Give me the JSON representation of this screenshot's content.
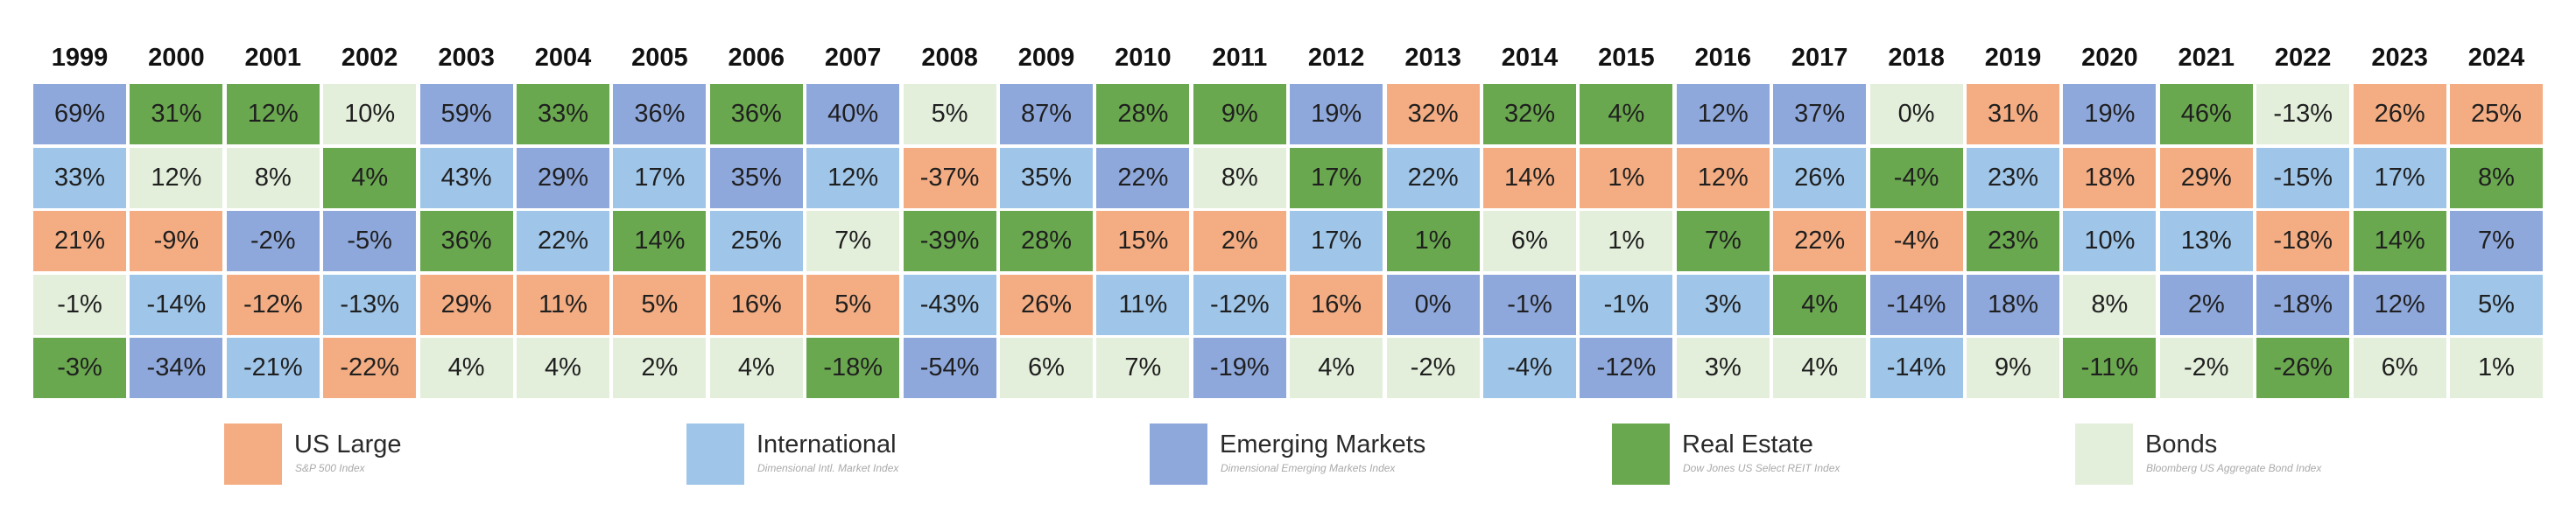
{
  "chart_data": {
    "type": "table",
    "years": [
      "1999",
      "2000",
      "2001",
      "2002",
      "2003",
      "2004",
      "2005",
      "2006",
      "2007",
      "2008",
      "2009",
      "2010",
      "2011",
      "2012",
      "2013",
      "2014",
      "2015",
      "2016",
      "2017",
      "2018",
      "2019",
      "2020",
      "2021",
      "2022",
      "2023",
      "2024"
    ],
    "categories": {
      "us_large": {
        "name": "US Large",
        "index": "S&P 500 Index",
        "color": "#f4ad83"
      },
      "international": {
        "name": "International",
        "index": "Dimensional Intl. Market Index",
        "color": "#9fc5e8"
      },
      "emerging": {
        "name": "Emerging Markets",
        "index": "Dimensional Emerging Markets Index",
        "color": "#8fa8dc"
      },
      "real_estate": {
        "name": "Real Estate",
        "index": "Dow Jones US Select REIT Index",
        "color": "#6aa84f"
      },
      "bonds": {
        "name": "Bonds",
        "index": "Bloomberg US Aggregate Bond Index",
        "color": "#e3efdb"
      }
    },
    "columns": [
      [
        [
          "69%",
          "emerging"
        ],
        [
          "33%",
          "international"
        ],
        [
          "21%",
          "us_large"
        ],
        [
          "-1%",
          "bonds"
        ],
        [
          "-3%",
          "real_estate"
        ]
      ],
      [
        [
          "31%",
          "real_estate"
        ],
        [
          "12%",
          "bonds"
        ],
        [
          "-9%",
          "us_large"
        ],
        [
          "-14%",
          "international"
        ],
        [
          "-34%",
          "emerging"
        ]
      ],
      [
        [
          "12%",
          "real_estate"
        ],
        [
          "8%",
          "bonds"
        ],
        [
          "-2%",
          "emerging"
        ],
        [
          "-12%",
          "us_large"
        ],
        [
          "-21%",
          "international"
        ]
      ],
      [
        [
          "10%",
          "bonds"
        ],
        [
          "4%",
          "real_estate"
        ],
        [
          "-5%",
          "emerging"
        ],
        [
          "-13%",
          "international"
        ],
        [
          "-22%",
          "us_large"
        ]
      ],
      [
        [
          "59%",
          "emerging"
        ],
        [
          "43%",
          "international"
        ],
        [
          "36%",
          "real_estate"
        ],
        [
          "29%",
          "us_large"
        ],
        [
          "4%",
          "bonds"
        ]
      ],
      [
        [
          "33%",
          "real_estate"
        ],
        [
          "29%",
          "emerging"
        ],
        [
          "22%",
          "international"
        ],
        [
          "11%",
          "us_large"
        ],
        [
          "4%",
          "bonds"
        ]
      ],
      [
        [
          "36%",
          "emerging"
        ],
        [
          "17%",
          "international"
        ],
        [
          "14%",
          "real_estate"
        ],
        [
          "5%",
          "us_large"
        ],
        [
          "2%",
          "bonds"
        ]
      ],
      [
        [
          "36%",
          "real_estate"
        ],
        [
          "35%",
          "emerging"
        ],
        [
          "25%",
          "international"
        ],
        [
          "16%",
          "us_large"
        ],
        [
          "4%",
          "bonds"
        ]
      ],
      [
        [
          "40%",
          "emerging"
        ],
        [
          "12%",
          "international"
        ],
        [
          "7%",
          "bonds"
        ],
        [
          "5%",
          "us_large"
        ],
        [
          "-18%",
          "real_estate"
        ]
      ],
      [
        [
          "5%",
          "bonds"
        ],
        [
          "-37%",
          "us_large"
        ],
        [
          "-39%",
          "real_estate"
        ],
        [
          "-43%",
          "international"
        ],
        [
          "-54%",
          "emerging"
        ]
      ],
      [
        [
          "87%",
          "emerging"
        ],
        [
          "35%",
          "international"
        ],
        [
          "28%",
          "real_estate"
        ],
        [
          "26%",
          "us_large"
        ],
        [
          "6%",
          "bonds"
        ]
      ],
      [
        [
          "28%",
          "real_estate"
        ],
        [
          "22%",
          "emerging"
        ],
        [
          "15%",
          "us_large"
        ],
        [
          "11%",
          "international"
        ],
        [
          "7%",
          "bonds"
        ]
      ],
      [
        [
          "9%",
          "real_estate"
        ],
        [
          "8%",
          "bonds"
        ],
        [
          "2%",
          "us_large"
        ],
        [
          "-12%",
          "international"
        ],
        [
          "-19%",
          "emerging"
        ]
      ],
      [
        [
          "19%",
          "emerging"
        ],
        [
          "17%",
          "real_estate"
        ],
        [
          "17%",
          "international"
        ],
        [
          "16%",
          "us_large"
        ],
        [
          "4%",
          "bonds"
        ]
      ],
      [
        [
          "32%",
          "us_large"
        ],
        [
          "22%",
          "international"
        ],
        [
          "1%",
          "real_estate"
        ],
        [
          "0%",
          "emerging"
        ],
        [
          "-2%",
          "bonds"
        ]
      ],
      [
        [
          "32%",
          "real_estate"
        ],
        [
          "14%",
          "us_large"
        ],
        [
          "6%",
          "bonds"
        ],
        [
          "-1%",
          "emerging"
        ],
        [
          "-4%",
          "international"
        ]
      ],
      [
        [
          "4%",
          "real_estate"
        ],
        [
          "1%",
          "us_large"
        ],
        [
          "1%",
          "bonds"
        ],
        [
          "-1%",
          "international"
        ],
        [
          "-12%",
          "emerging"
        ]
      ],
      [
        [
          "12%",
          "emerging"
        ],
        [
          "12%",
          "us_large"
        ],
        [
          "7%",
          "real_estate"
        ],
        [
          "3%",
          "international"
        ],
        [
          "3%",
          "bonds"
        ]
      ],
      [
        [
          "37%",
          "emerging"
        ],
        [
          "26%",
          "international"
        ],
        [
          "22%",
          "us_large"
        ],
        [
          "4%",
          "real_estate"
        ],
        [
          "4%",
          "bonds"
        ]
      ],
      [
        [
          "0%",
          "bonds"
        ],
        [
          "-4%",
          "real_estate"
        ],
        [
          "-4%",
          "us_large"
        ],
        [
          "-14%",
          "emerging"
        ],
        [
          "-14%",
          "international"
        ]
      ],
      [
        [
          "31%",
          "us_large"
        ],
        [
          "23%",
          "international"
        ],
        [
          "23%",
          "real_estate"
        ],
        [
          "18%",
          "emerging"
        ],
        [
          "9%",
          "bonds"
        ]
      ],
      [
        [
          "19%",
          "emerging"
        ],
        [
          "18%",
          "us_large"
        ],
        [
          "10%",
          "international"
        ],
        [
          "8%",
          "bonds"
        ],
        [
          "-11%",
          "real_estate"
        ]
      ],
      [
        [
          "46%",
          "real_estate"
        ],
        [
          "29%",
          "us_large"
        ],
        [
          "13%",
          "international"
        ],
        [
          "2%",
          "emerging"
        ],
        [
          "-2%",
          "bonds"
        ]
      ],
      [
        [
          "-13%",
          "bonds"
        ],
        [
          "-15%",
          "international"
        ],
        [
          "-18%",
          "us_large"
        ],
        [
          "-18%",
          "emerging"
        ],
        [
          "-26%",
          "real_estate"
        ]
      ],
      [
        [
          "26%",
          "us_large"
        ],
        [
          "17%",
          "international"
        ],
        [
          "14%",
          "real_estate"
        ],
        [
          "12%",
          "emerging"
        ],
        [
          "6%",
          "bonds"
        ]
      ],
      [
        [
          "25%",
          "us_large"
        ],
        [
          "8%",
          "real_estate"
        ],
        [
          "7%",
          "emerging"
        ],
        [
          "5%",
          "international"
        ],
        [
          "1%",
          "bonds"
        ]
      ]
    ],
    "legend": [
      "us_large",
      "international",
      "emerging",
      "real_estate",
      "bonds"
    ]
  }
}
